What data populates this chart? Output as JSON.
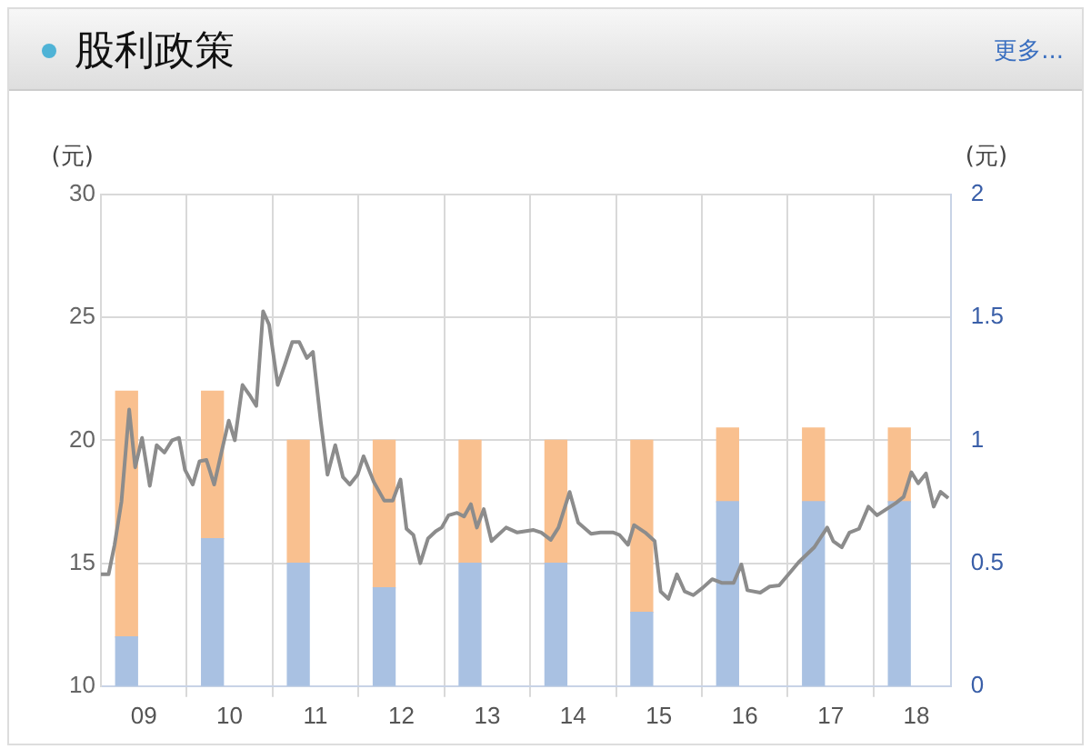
{
  "chart_data": {
    "type": "bar",
    "title": "股利政策",
    "annotations": [
      "更多..."
    ],
    "ylabel": "(元)",
    "y2label": "(元)",
    "xlim": [
      8.5,
      18.4
    ],
    "xticks": [
      {
        "value": 9,
        "label": "09"
      },
      {
        "value": 9.5,
        "label": null
      },
      {
        "value": 10,
        "label": "10"
      },
      {
        "value": 10.5,
        "label": null
      },
      {
        "value": 11,
        "label": "11"
      },
      {
        "value": 11.5,
        "label": null
      },
      {
        "value": 12,
        "label": "12"
      },
      {
        "value": 12.5,
        "label": null
      },
      {
        "value": 13,
        "label": "13"
      },
      {
        "value": 13.5,
        "label": null
      },
      {
        "value": 14,
        "label": "14"
      },
      {
        "value": 14.5,
        "label": null
      },
      {
        "value": 15,
        "label": "15"
      },
      {
        "value": 15.5,
        "label": null
      },
      {
        "value": 16,
        "label": "16"
      },
      {
        "value": 16.5,
        "label": null
      },
      {
        "value": 17,
        "label": "17"
      },
      {
        "value": 17.5,
        "label": null
      },
      {
        "value": 18,
        "label": "18"
      }
    ],
    "ylim": [
      10,
      30
    ],
    "yticks": [
      10,
      15,
      20,
      25,
      30
    ],
    "y2lim": [
      0,
      2
    ],
    "y2ticks": [
      0,
      0.5,
      1,
      1.5,
      2
    ],
    "stacked": true,
    "grid": true,
    "legend": false,
    "marker": "none",
    "series": [
      {
        "axis": "y2",
        "color": "#a9c1e2",
        "x": [
          8.8,
          9.8,
          10.8,
          11.8,
          12.8,
          13.8,
          14.8,
          15.8,
          16.8,
          17.8
        ],
        "values": [
          0.2,
          0.6,
          0.5,
          0.4,
          0.5,
          0.5,
          0.3,
          0.75,
          0.75,
          0.75
        ]
      },
      {
        "axis": "y2",
        "color": "#f9c08f",
        "x": [
          8.8,
          9.8,
          10.8,
          11.8,
          12.8,
          13.8,
          14.8,
          15.8,
          16.8,
          17.8
        ],
        "values": [
          1.0,
          0.6,
          0.5,
          0.6,
          0.5,
          0.5,
          0.7,
          0.3,
          0.3,
          0.3
        ]
      },
      {
        "type": "line",
        "color": "#8c8c8c",
        "x": [
          8.5,
          8.59,
          8.66,
          8.74,
          8.83,
          8.9,
          8.98,
          9.07,
          9.15,
          9.24,
          9.33,
          9.41,
          9.48,
          9.57,
          9.65,
          9.73,
          9.82,
          9.93,
          9.99,
          10.06,
          10.15,
          10.24,
          10.31,
          10.39,
          10.46,
          10.56,
          10.64,
          10.73,
          10.81,
          10.9,
          10.97,
          11.06,
          11.14,
          11.23,
          11.32,
          11.4,
          11.49,
          11.56,
          11.68,
          11.8,
          11.9,
          11.99,
          12.06,
          12.14,
          12.22,
          12.31,
          12.4,
          12.47,
          12.55,
          12.65,
          12.73,
          12.81,
          12.88,
          12.96,
          13.05,
          13.22,
          13.35,
          13.54,
          13.63,
          13.74,
          13.83,
          13.96,
          14.06,
          14.21,
          14.32,
          14.47,
          14.54,
          14.64,
          14.71,
          14.84,
          14.95,
          15.02,
          15.11,
          15.21,
          15.3,
          15.4,
          15.51,
          15.62,
          15.73,
          15.87,
          15.96,
          16.03,
          16.18,
          16.29,
          16.4,
          16.51,
          16.63,
          16.81,
          16.96,
          17.03,
          17.13,
          17.22,
          17.33,
          17.44,
          17.54,
          17.65,
          17.76,
          17.85,
          17.94,
          18.02,
          18.11,
          18.2,
          18.28,
          18.37
        ],
        "values": [
          14.55,
          14.55,
          15.75,
          17.5,
          21.25,
          18.9,
          20.1,
          18.15,
          19.8,
          19.5,
          20.0,
          20.1,
          18.8,
          18.2,
          19.15,
          19.2,
          18.2,
          19.9,
          20.8,
          20.0,
          22.25,
          21.8,
          21.4,
          25.25,
          24.7,
          22.25,
          23.05,
          24.0,
          24.0,
          23.35,
          23.6,
          20.8,
          18.6,
          19.8,
          18.5,
          18.2,
          18.6,
          19.35,
          18.3,
          17.55,
          17.55,
          18.4,
          16.4,
          16.15,
          15.0,
          16.0,
          16.3,
          16.45,
          16.95,
          17.05,
          16.9,
          17.4,
          16.45,
          17.2,
          15.9,
          16.45,
          16.25,
          16.35,
          16.25,
          15.95,
          16.45,
          17.9,
          16.65,
          16.2,
          16.25,
          16.25,
          16.15,
          15.75,
          16.55,
          16.25,
          15.9,
          13.85,
          13.55,
          14.55,
          13.85,
          13.7,
          14.0,
          14.35,
          14.2,
          14.2,
          14.95,
          13.9,
          13.8,
          14.05,
          14.1,
          14.55,
          15.05,
          15.65,
          16.45,
          15.9,
          15.65,
          16.25,
          16.4,
          17.3,
          16.95,
          17.2,
          17.45,
          17.7,
          18.7,
          18.25,
          18.65,
          17.3,
          17.9,
          17.65
        ]
      }
    ]
  }
}
